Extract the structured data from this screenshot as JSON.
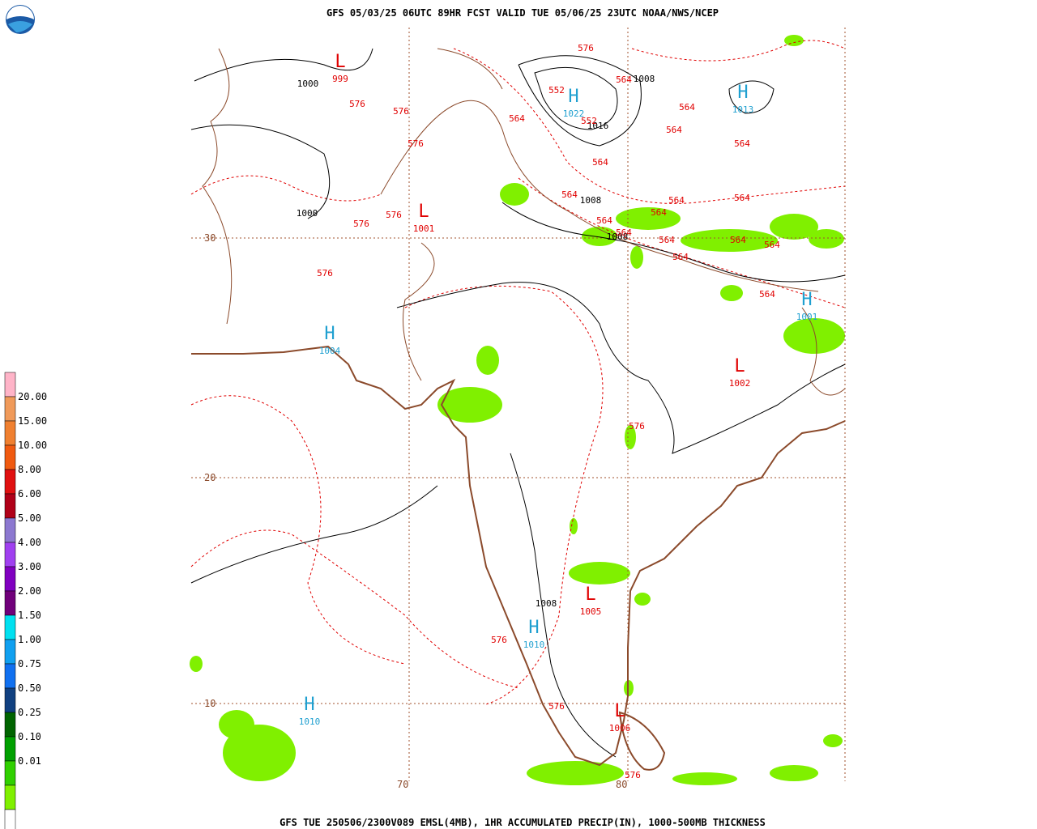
{
  "header": {
    "title": "GFS 05/03/25 06UTC 89HR FCST VALID TUE 05/06/25 23UTC NOAA/NWS/NCEP"
  },
  "footer": {
    "caption": "GFS TUE 250506/2300V089 EMSL(4MB), 1HR ACCUMULATED PRECIP(IN), 1000-500MB THICKNESS"
  },
  "legend": {
    "labels": [
      "20.00",
      "15.00",
      "10.00",
      "8.00",
      "6.00",
      "5.00",
      "4.00",
      "3.00",
      "2.00",
      "1.50",
      "1.00",
      "0.75",
      "0.50",
      "0.25",
      "0.10",
      "0.01"
    ],
    "colors": [
      "#ffb4c8",
      "#f09a5a",
      "#f08030",
      "#f05a10",
      "#e01010",
      "#b00018",
      "#8c78d0",
      "#a040f0",
      "#8000c0",
      "#70007a",
      "#00e0f0",
      "#10a0f0",
      "#1070f0",
      "#104080",
      "#006400",
      "#00a000",
      "#30d000",
      "#80f000",
      "#ffffff"
    ]
  },
  "map": {
    "grid_labels": [
      "30",
      "20",
      "10",
      "70",
      "80"
    ],
    "centers": [
      {
        "symbol": "L",
        "pressure": 999
      },
      {
        "symbol": "H",
        "pressure": 1022
      },
      {
        "symbol": "H",
        "pressure": 1013
      },
      {
        "symbol": "L",
        "pressure": 1001
      },
      {
        "symbol": "H",
        "pressure": 1004
      },
      {
        "symbol": "H",
        "pressure": 1001
      },
      {
        "symbol": "L",
        "pressure": 1002
      },
      {
        "symbol": "L",
        "pressure": 1005
      },
      {
        "symbol": "H",
        "pressure": 1010
      },
      {
        "symbol": "H",
        "pressure": 1010
      },
      {
        "symbol": "L",
        "pressure": 1006
      }
    ],
    "isobar_labels": [
      1000,
      1008,
      1016,
      1008,
      1000,
      1008,
      1008
    ],
    "thickness_labels": [
      576,
      564,
      552,
      552,
      564,
      564,
      564,
      576,
      576,
      576,
      564,
      564,
      564,
      564,
      564,
      564,
      564,
      564,
      564,
      564,
      564,
      564,
      576,
      576,
      576,
      576,
      576,
      576,
      576,
      564
    ]
  }
}
